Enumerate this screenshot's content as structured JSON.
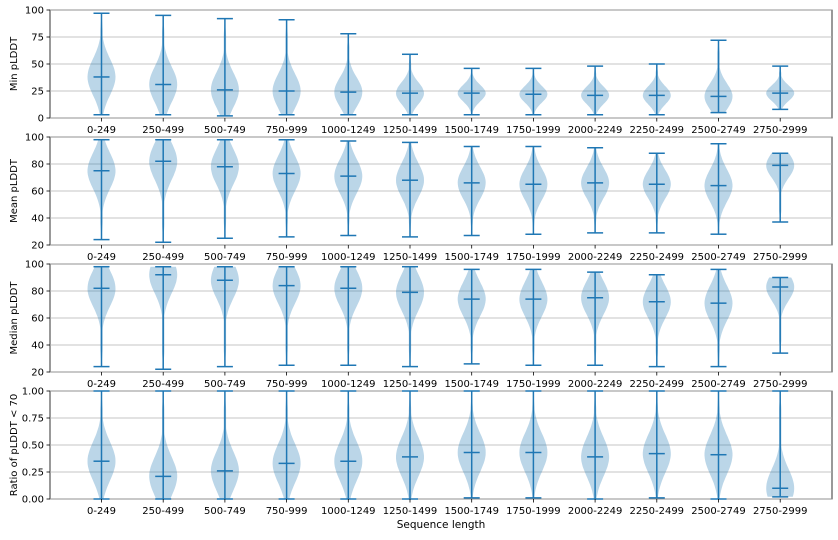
{
  "figure": {
    "categories": [
      "0-249",
      "250-499",
      "500-749",
      "750-999",
      "1000-1249",
      "1250-1499",
      "1500-1749",
      "1750-1999",
      "2000-2249",
      "2250-2499",
      "2500-2749",
      "2750-2999"
    ],
    "xlabel": "Sequence length",
    "colors": {
      "violin_fill": "#1f77b4",
      "violin_alpha": 0.3,
      "line": "#1f77b4",
      "grid": "#b0b0b0"
    }
  },
  "chart_data": [
    {
      "type": "violin",
      "ylabel": "Min pLDDT",
      "ylim": [
        0,
        100
      ],
      "yticks": [
        0,
        25,
        50,
        75,
        100
      ],
      "ytick_labels": [
        "0",
        "25",
        "50",
        "75",
        "100"
      ],
      "grid": "y",
      "series": [
        {
          "category": "0-249",
          "min": 3,
          "max": 97,
          "median": 38
        },
        {
          "category": "250-499",
          "min": 3,
          "max": 95,
          "median": 31
        },
        {
          "category": "500-749",
          "min": 2,
          "max": 92,
          "median": 26
        },
        {
          "category": "750-999",
          "min": 3,
          "max": 91,
          "median": 25
        },
        {
          "category": "1000-1249",
          "min": 3,
          "max": 78,
          "median": 24
        },
        {
          "category": "1250-1499",
          "min": 3,
          "max": 59,
          "median": 23
        },
        {
          "category": "1500-1749",
          "min": 3,
          "max": 46,
          "median": 23
        },
        {
          "category": "1750-1999",
          "min": 3,
          "max": 46,
          "median": 22
        },
        {
          "category": "2000-2249",
          "min": 3,
          "max": 48,
          "median": 21
        },
        {
          "category": "2250-2499",
          "min": 3,
          "max": 50,
          "median": 21
        },
        {
          "category": "2500-2749",
          "min": 5,
          "max": 72,
          "median": 20
        },
        {
          "category": "2750-2999",
          "min": 8,
          "max": 48,
          "median": 23
        }
      ]
    },
    {
      "type": "violin",
      "ylabel": "Mean pLDDT",
      "ylim": [
        20,
        100
      ],
      "yticks": [
        20,
        40,
        60,
        80,
        100
      ],
      "ytick_labels": [
        "20",
        "40",
        "60",
        "80",
        "100"
      ],
      "grid": "y",
      "series": [
        {
          "category": "0-249",
          "min": 24,
          "max": 98,
          "median": 75
        },
        {
          "category": "250-499",
          "min": 22,
          "max": 98,
          "median": 82
        },
        {
          "category": "500-749",
          "min": 25,
          "max": 98,
          "median": 78
        },
        {
          "category": "750-999",
          "min": 26,
          "max": 98,
          "median": 73
        },
        {
          "category": "1000-1249",
          "min": 27,
          "max": 97,
          "median": 71
        },
        {
          "category": "1250-1499",
          "min": 26,
          "max": 96,
          "median": 68
        },
        {
          "category": "1500-1749",
          "min": 27,
          "max": 93,
          "median": 66
        },
        {
          "category": "1750-1999",
          "min": 28,
          "max": 93,
          "median": 65
        },
        {
          "category": "2000-2249",
          "min": 29,
          "max": 92,
          "median": 66
        },
        {
          "category": "2250-2499",
          "min": 29,
          "max": 88,
          "median": 65
        },
        {
          "category": "2500-2749",
          "min": 28,
          "max": 95,
          "median": 64
        },
        {
          "category": "2750-2999",
          "min": 37,
          "max": 88,
          "median": 79
        }
      ]
    },
    {
      "type": "violin",
      "ylabel": "Median pLDDT",
      "ylim": [
        20,
        100
      ],
      "yticks": [
        20,
        40,
        60,
        80,
        100
      ],
      "ytick_labels": [
        "20",
        "40",
        "60",
        "80",
        "100"
      ],
      "grid": "y",
      "series": [
        {
          "category": "0-249",
          "min": 24,
          "max": 98,
          "median": 82
        },
        {
          "category": "250-499",
          "min": 22,
          "max": 98,
          "median": 92
        },
        {
          "category": "500-749",
          "min": 24,
          "max": 98,
          "median": 88
        },
        {
          "category": "750-999",
          "min": 25,
          "max": 98,
          "median": 84
        },
        {
          "category": "1000-1249",
          "min": 25,
          "max": 98,
          "median": 82
        },
        {
          "category": "1250-1499",
          "min": 24,
          "max": 98,
          "median": 79
        },
        {
          "category": "1500-1749",
          "min": 26,
          "max": 96,
          "median": 74
        },
        {
          "category": "1750-1999",
          "min": 25,
          "max": 96,
          "median": 74
        },
        {
          "category": "2000-2249",
          "min": 25,
          "max": 94,
          "median": 75
        },
        {
          "category": "2250-2499",
          "min": 24,
          "max": 92,
          "median": 72
        },
        {
          "category": "2500-2749",
          "min": 24,
          "max": 96,
          "median": 71
        },
        {
          "category": "2750-2999",
          "min": 34,
          "max": 90,
          "median": 83
        }
      ]
    },
    {
      "type": "violin",
      "ylabel": "Ratio of pLDDT < 70",
      "ylim": [
        0,
        1
      ],
      "yticks": [
        0,
        0.25,
        0.5,
        0.75,
        1.0
      ],
      "ytick_labels": [
        "0.00",
        "0.25",
        "0.50",
        "0.75",
        "1.00"
      ],
      "grid": "y",
      "series": [
        {
          "category": "0-249",
          "min": 0.0,
          "max": 1.0,
          "median": 0.35
        },
        {
          "category": "250-499",
          "min": 0.0,
          "max": 1.0,
          "median": 0.21
        },
        {
          "category": "500-749",
          "min": 0.0,
          "max": 1.0,
          "median": 0.26
        },
        {
          "category": "750-999",
          "min": 0.0,
          "max": 1.0,
          "median": 0.33
        },
        {
          "category": "1000-1249",
          "min": 0.0,
          "max": 1.0,
          "median": 0.35
        },
        {
          "category": "1250-1499",
          "min": 0.0,
          "max": 1.0,
          "median": 0.39
        },
        {
          "category": "1500-1749",
          "min": 0.01,
          "max": 1.0,
          "median": 0.43
        },
        {
          "category": "1750-1999",
          "min": 0.01,
          "max": 1.0,
          "median": 0.43
        },
        {
          "category": "2000-2249",
          "min": 0.0,
          "max": 1.0,
          "median": 0.39
        },
        {
          "category": "2250-2499",
          "min": 0.01,
          "max": 1.0,
          "median": 0.42
        },
        {
          "category": "2500-2749",
          "min": 0.0,
          "max": 1.0,
          "median": 0.41
        },
        {
          "category": "2750-2999",
          "min": 0.02,
          "max": 1.0,
          "median": 0.1
        }
      ]
    }
  ]
}
